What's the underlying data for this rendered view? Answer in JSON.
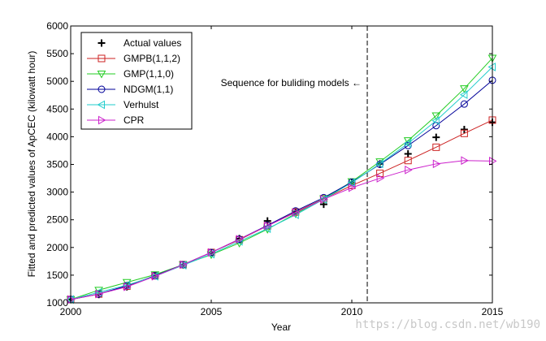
{
  "chart_data": {
    "type": "line",
    "xlabel": "Year",
    "ylabel": "Fitted and predicted values of ApCEC (kilowatt hour)",
    "xlim": [
      2000,
      2015
    ],
    "ylim": [
      1000,
      6000
    ],
    "xticks": [
      "2000",
      "2005",
      "2010",
      "2015"
    ],
    "yticks": [
      "1000",
      "1500",
      "2000",
      "2500",
      "3000",
      "3500",
      "4000",
      "4500",
      "5000",
      "5500",
      "6000"
    ],
    "grid": false,
    "legend_position": "top-left",
    "annotation": "Sequence for buliding models ←",
    "divider_x": 2010.55,
    "x": [
      2000,
      2001,
      2002,
      2003,
      2004,
      2005,
      2006,
      2007,
      2008,
      2009,
      2010,
      2011,
      2012,
      2013,
      2014,
      2015
    ],
    "series": [
      {
        "name": "Actual values",
        "color": "#000000",
        "marker": "plus",
        "line": false,
        "values": [
          1060,
          1150,
          1290,
          1490,
          1690,
          1900,
          2160,
          2480,
          2640,
          2780,
          3170,
          3510,
          3690,
          3990,
          4130,
          4260
        ]
      },
      {
        "name": "GMPB(1,1,2)",
        "color": "#cc2222",
        "marker": "square",
        "line": true,
        "values": [
          1060,
          1160,
          1300,
          1490,
          1690,
          1910,
          2140,
          2390,
          2640,
          2880,
          3120,
          3340,
          3570,
          3810,
          4060,
          4300
        ]
      },
      {
        "name": "GMP(1,1,0)",
        "color": "#22cc22",
        "marker": "triangle-down",
        "line": true,
        "values": [
          1060,
          1230,
          1370,
          1510,
          1690,
          1870,
          2080,
          2330,
          2610,
          2880,
          3190,
          3550,
          3930,
          4380,
          4870,
          5420
        ]
      },
      {
        "name": "NDGM(1,1)",
        "color": "#000099",
        "marker": "circle",
        "line": true,
        "values": [
          1060,
          1160,
          1310,
          1490,
          1690,
          1910,
          2150,
          2400,
          2660,
          2900,
          3180,
          3500,
          3840,
          4200,
          4590,
          5020
        ]
      },
      {
        "name": "Verhulst",
        "color": "#22cccc",
        "marker": "triangle-left",
        "line": true,
        "values": [
          1060,
          1190,
          1320,
          1480,
          1680,
          1880,
          2110,
          2340,
          2590,
          2870,
          3170,
          3510,
          3880,
          4290,
          4760,
          5260
        ]
      },
      {
        "name": "CPR",
        "color": "#cc22cc",
        "marker": "triangle-right",
        "line": true,
        "values": [
          1060,
          1160,
          1290,
          1480,
          1690,
          1910,
          2150,
          2390,
          2630,
          2870,
          3080,
          3250,
          3400,
          3510,
          3570,
          3560
        ]
      }
    ]
  },
  "watermark": "https://blog.csdn.net/wb190"
}
